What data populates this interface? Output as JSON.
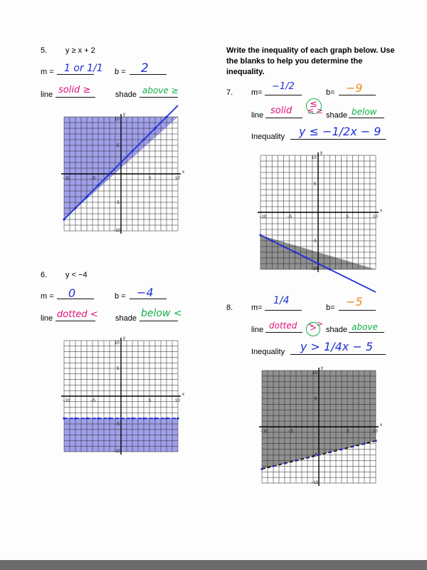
{
  "colors": {
    "blue_ink": "#1e2fd6",
    "pink_ink": "#e0137a",
    "green_ink": "#12b04a",
    "orange_ink": "#f08a1c",
    "shade_blue": "#8f8fe6",
    "shade_gray": "#8a8a8a"
  },
  "instructions": "Write the inequality of each graph below. Use the blanks to help you determine the inequality.",
  "labels": {
    "m": "m =",
    "m_compact": "m=",
    "b": "b =",
    "b_compact": "b=",
    "line": "line",
    "shade": "shade",
    "inequality": "Inequality"
  },
  "axis_ticks": {
    "neg": "−10",
    "pos": "10",
    "neg5": "−5",
    "pos5": "5",
    "x": "x",
    "y": "y"
  },
  "problems": [
    {
      "number": "5.",
      "equation": "y ≥ x + 2",
      "m_answer": "1 or 1/1",
      "b_answer": "2",
      "line_answer": "solid ≥",
      "shade_answer": "above ≥",
      "graph": {
        "slope": 1,
        "intercept": 2,
        "shade": "above",
        "line": "solid"
      }
    },
    {
      "number": "6.",
      "equation": "y < −4",
      "m_answer": "0",
      "b_answer": "−4",
      "line_answer": "dotted <",
      "shade_answer": "below <",
      "graph": {
        "slope": 0,
        "intercept": -4,
        "shade": "below",
        "line": "dotted"
      }
    },
    {
      "number": "7.",
      "m_answer": "−1/2",
      "b_answer": "−9",
      "line_answer": "solid",
      "symbol_options": "≤ ≥",
      "circled_symbol": "≤",
      "shade_answer": "below",
      "inequality_answer": "y ≤ −1/2x − 9",
      "graph": {
        "slope": -0.5,
        "intercept": -9,
        "shade": "below",
        "line": "solid"
      }
    },
    {
      "number": "8.",
      "m_answer": "1/4",
      "b_answer": "−5",
      "line_answer": "dotted",
      "symbol_options": "< >",
      "circled_symbol": ">",
      "shade_answer": "above",
      "inequality_answer": "y > 1/4x − 5",
      "graph": {
        "slope": 0.25,
        "intercept": -5,
        "shade": "above",
        "line": "dotted"
      }
    }
  ]
}
